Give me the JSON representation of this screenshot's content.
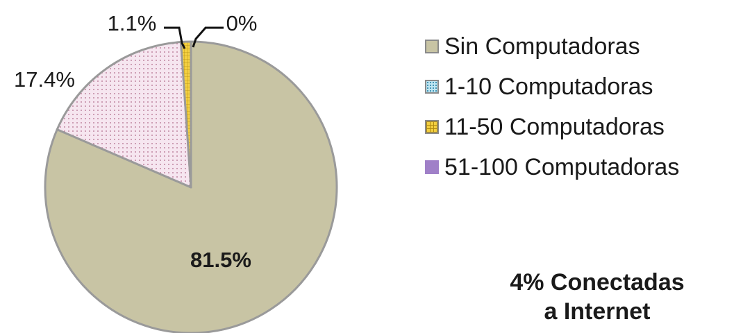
{
  "chart_data": {
    "type": "pie",
    "slices": [
      {
        "label": "Sin Computadoras",
        "value": 81.5,
        "value_label": "81.5%",
        "color": "#c8c4a4",
        "pattern": "solid"
      },
      {
        "label": "1-10 Computadoras",
        "value": 17.4,
        "value_label": "17.4%",
        "color": "#f3dcea",
        "pattern": "dots"
      },
      {
        "label": "11-50 Computadoras",
        "value": 1.1,
        "value_label": "1.1%",
        "color": "#f0c830",
        "pattern": "grid"
      },
      {
        "label": "51-100 Computadoras",
        "value": 0,
        "value_label": "0%",
        "color": "#a080c8",
        "pattern": "solid"
      }
    ],
    "legend_position": "right",
    "note_lines": [
      "4% Conectadas",
      "a Internet"
    ]
  }
}
